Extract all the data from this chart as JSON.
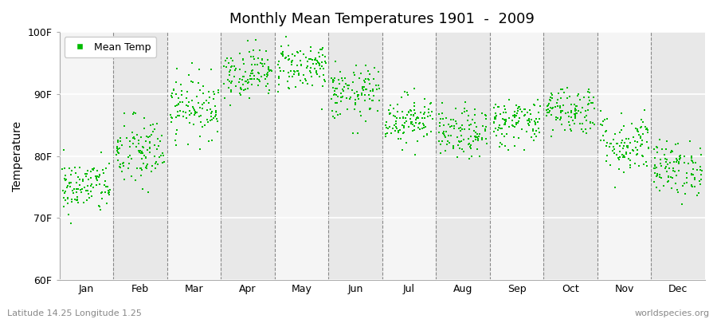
{
  "title": "Monthly Mean Temperatures 1901  -  2009",
  "ylabel": "Temperature",
  "xlabel": "",
  "subtitle_left": "Latitude 14.25 Longitude 1.25",
  "subtitle_right": "worldspecies.org",
  "legend_label": "Mean Temp",
  "dot_color": "#00bb00",
  "bg_color": "#f0f0f0",
  "band_color_light": "#f5f5f5",
  "band_color_dark": "#e8e8e8",
  "ylim": [
    60,
    100
  ],
  "ytick_labels": [
    "60F",
    "70F",
    "80F",
    "90F",
    "100F"
  ],
  "ytick_values": [
    60,
    70,
    80,
    90,
    100
  ],
  "months": [
    "Jan",
    "Feb",
    "Mar",
    "Apr",
    "May",
    "Jun",
    "Jul",
    "Aug",
    "Sep",
    "Oct",
    "Nov",
    "Dec"
  ],
  "num_years": 109,
  "seed": 42,
  "monthly_means": [
    75.0,
    80.5,
    88.0,
    93.5,
    94.5,
    90.0,
    86.0,
    83.5,
    85.5,
    87.5,
    82.0,
    78.0
  ],
  "monthly_stds": [
    2.2,
    3.0,
    2.5,
    2.0,
    2.0,
    2.2,
    2.0,
    2.0,
    2.0,
    2.0,
    2.5,
    2.2
  ]
}
